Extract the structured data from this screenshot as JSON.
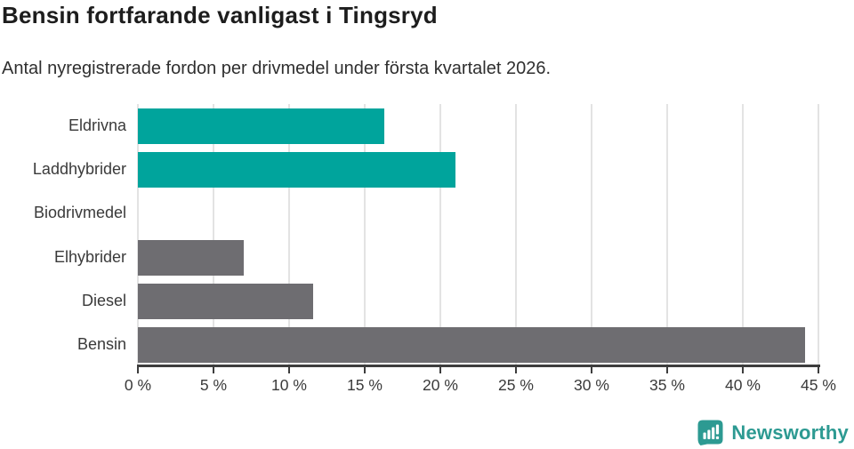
{
  "header": {
    "title": "Bensin fortfarande vanligast i Tingsryd",
    "subtitle": "Antal nyregistrerade fordon per drivmedel under första kvartalet 2026."
  },
  "chart_data": {
    "type": "bar",
    "orientation": "horizontal",
    "title": "Bensin fortfarande vanligast i Tingsryd",
    "subtitle": "Antal nyregistrerade fordon per drivmedel under första kvartalet 2026.",
    "categories": [
      "Eldrivna",
      "Laddhybrider",
      "Biodrivmedel",
      "Elhybrider",
      "Diesel",
      "Bensin"
    ],
    "values": [
      16.3,
      21.0,
      0,
      7.0,
      11.6,
      44.1
    ],
    "unit": "%",
    "bar_colors": [
      "#00a49c",
      "#00a49c",
      "#00a49c",
      "#6e6d71",
      "#6e6d71",
      "#6e6d71"
    ],
    "xlabel": "",
    "ylabel": "",
    "xlim": [
      0,
      45
    ],
    "x_ticks": [
      0,
      5,
      10,
      15,
      20,
      25,
      30,
      35,
      40,
      45
    ],
    "x_tick_labels": [
      "0 %",
      "5 %",
      "10 %",
      "15 %",
      "20 %",
      "25 %",
      "30 %",
      "35 %",
      "40 %",
      "45 %"
    ],
    "grid": true,
    "legend": false
  },
  "branding": {
    "logo_text": "Newsworthy",
    "logo_icon": "newsworthy-speech-bubble-chart-icon",
    "logo_color": "#2d9a92"
  },
  "colors": {
    "highlight_teal": "#00a49c",
    "neutral_gray": "#6e6d71",
    "gridline": "#e3e3e3",
    "axis": "#3d3d3d",
    "label_text": "#3a3a3a",
    "title_text": "#1d1d1d"
  }
}
